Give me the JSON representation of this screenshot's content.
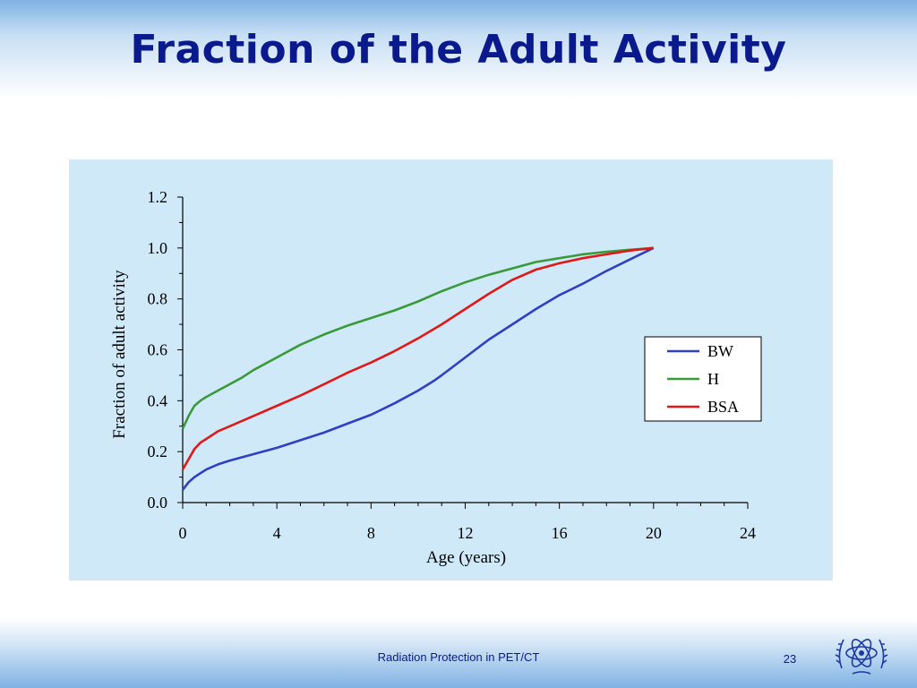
{
  "slide": {
    "title": "Fraction of the Adult Activity",
    "footer": "Radiation Protection in PET/CT",
    "page_number": "23",
    "logo_icon": "iaea-atom-logo-icon"
  },
  "colors": {
    "title": "#0a1a8c",
    "panel_bg": "#cfe9f9",
    "BW": "#3040c0",
    "H": "#3a9a3a",
    "BSA": "#e01818"
  },
  "chart_data": {
    "type": "line",
    "title": "",
    "xlabel": "Age (years)",
    "ylabel": "Fraction of adult activity",
    "xlim": [
      0,
      24
    ],
    "ylim": [
      0,
      1.2
    ],
    "xticks": [
      "0",
      "4",
      "8",
      "12",
      "16",
      "20",
      "24"
    ],
    "yticks": [
      "0.0",
      "0.2",
      "0.4",
      "0.6",
      "0.8",
      "1.0",
      "1.2"
    ],
    "grid": false,
    "legend_position": "right",
    "series": [
      {
        "name": "BW",
        "x": [
          0,
          0.25,
          0.5,
          0.75,
          1,
          1.5,
          2,
          3,
          4,
          5,
          6,
          7,
          8,
          9,
          10,
          10.7,
          11,
          12,
          13,
          14,
          15,
          16,
          17,
          18,
          19,
          20
        ],
        "y": [
          0.05,
          0.08,
          0.1,
          0.115,
          0.13,
          0.15,
          0.165,
          0.19,
          0.215,
          0.245,
          0.275,
          0.31,
          0.345,
          0.39,
          0.44,
          0.48,
          0.5,
          0.57,
          0.64,
          0.7,
          0.76,
          0.815,
          0.86,
          0.91,
          0.955,
          1.0
        ]
      },
      {
        "name": "H",
        "x": [
          0,
          0.25,
          0.5,
          0.75,
          1,
          1.5,
          2,
          2.5,
          3,
          4,
          5,
          6,
          7,
          8,
          9,
          10,
          11,
          12,
          13,
          14,
          15,
          16,
          17,
          18,
          19,
          20
        ],
        "y": [
          0.29,
          0.34,
          0.38,
          0.4,
          0.415,
          0.44,
          0.465,
          0.49,
          0.52,
          0.57,
          0.62,
          0.66,
          0.695,
          0.725,
          0.755,
          0.79,
          0.83,
          0.865,
          0.895,
          0.92,
          0.945,
          0.96,
          0.975,
          0.985,
          0.993,
          1.0
        ]
      },
      {
        "name": "BSA",
        "x": [
          0,
          0.25,
          0.5,
          0.75,
          1,
          1.5,
          2,
          3,
          4,
          5,
          6,
          7,
          8,
          9,
          10,
          11,
          12,
          13,
          14,
          15,
          16,
          17,
          18,
          19,
          20
        ],
        "y": [
          0.13,
          0.17,
          0.21,
          0.235,
          0.25,
          0.28,
          0.3,
          0.34,
          0.38,
          0.42,
          0.465,
          0.51,
          0.55,
          0.595,
          0.645,
          0.7,
          0.76,
          0.82,
          0.875,
          0.915,
          0.94,
          0.96,
          0.975,
          0.99,
          1.0
        ]
      }
    ]
  }
}
